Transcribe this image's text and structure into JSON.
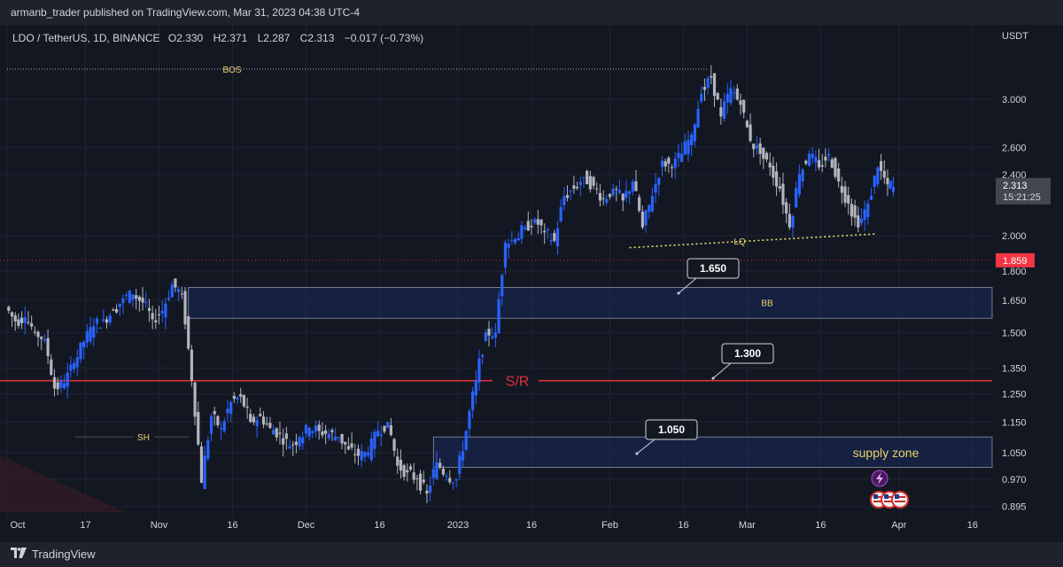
{
  "header": {
    "publisher_text": "armanb_trader published on TradingView.com, Mar 31, 2023 04:38 UTC-4"
  },
  "legend": {
    "symbol": "LDO / TetherUS, 1D, BINANCE",
    "open_label": "O",
    "open": "2.330",
    "high_label": "H",
    "high": "2.371",
    "low_label": "L",
    "low": "2.287",
    "close_label": "C",
    "close": "2.313",
    "change": "−0.017 (−0.73%)"
  },
  "footer": {
    "brand": "TradingView"
  },
  "colors": {
    "background": "#131722",
    "grid": "#1f2433",
    "up_candle": "#2962ff",
    "down_candle": "#b2b5be",
    "sr_line": "#e0323c",
    "annotation_text": "#e8d36a",
    "zone_fill": "#1a2a5c",
    "price_badge": "#f23645"
  },
  "chart_data": {
    "type": "candlestick",
    "symbol": "LDO / TetherUS",
    "interval": "1D",
    "exchange": "BINANCE",
    "y_scale": "log",
    "y_unit": "USDT",
    "ylim": [
      0.88,
      3.55
    ],
    "y_ticks": [
      "3.000",
      "2.600",
      "2.400",
      "2.000",
      "1.800",
      "1.650",
      "1.500",
      "1.350",
      "1.250",
      "1.150",
      "1.050",
      "0.970",
      "0.895"
    ],
    "x_ticks": [
      {
        "date": "2022-10-01",
        "label": "Oct"
      },
      {
        "date": "2022-10-17",
        "label": "17"
      },
      {
        "date": "2022-11-01",
        "label": "Nov"
      },
      {
        "date": "2022-11-16",
        "label": "16"
      },
      {
        "date": "2022-12-01",
        "label": "Dec"
      },
      {
        "date": "2022-12-16",
        "label": "16"
      },
      {
        "date": "2023-01-01",
        "label": "2023"
      },
      {
        "date": "2023-01-16",
        "label": "16"
      },
      {
        "date": "2023-02-01",
        "label": "Feb"
      },
      {
        "date": "2023-02-16",
        "label": "16"
      },
      {
        "date": "2023-03-01",
        "label": "Mar"
      },
      {
        "date": "2023-03-16",
        "label": "16"
      },
      {
        "date": "2023-04-01",
        "label": "Apr"
      },
      {
        "date": "2023-04-16",
        "label": "16"
      }
    ],
    "xlim": [
      "2022-10-01",
      "2023-04-20"
    ],
    "close_series": [
      [
        "2022-10-01",
        1.62
      ],
      [
        "2022-10-03",
        1.55
      ],
      [
        "2022-10-05",
        1.57
      ],
      [
        "2022-10-07",
        1.5
      ],
      [
        "2022-10-09",
        1.47
      ],
      [
        "2022-10-11",
        1.27
      ],
      [
        "2022-10-13",
        1.29
      ],
      [
        "2022-10-15",
        1.37
      ],
      [
        "2022-10-17",
        1.46
      ],
      [
        "2022-10-19",
        1.53
      ],
      [
        "2022-10-21",
        1.56
      ],
      [
        "2022-10-23",
        1.6
      ],
      [
        "2022-10-25",
        1.66
      ],
      [
        "2022-10-27",
        1.68
      ],
      [
        "2022-10-29",
        1.64
      ],
      [
        "2022-10-31",
        1.56
      ],
      [
        "2022-11-02",
        1.6
      ],
      [
        "2022-11-04",
        1.73
      ],
      [
        "2022-11-06",
        1.68
      ],
      [
        "2022-11-08",
        1.3
      ],
      [
        "2022-11-10",
        0.96
      ],
      [
        "2022-11-12",
        1.17
      ],
      [
        "2022-11-14",
        1.13
      ],
      [
        "2022-11-16",
        1.22
      ],
      [
        "2022-11-18",
        1.24
      ],
      [
        "2022-11-20",
        1.15
      ],
      [
        "2022-11-22",
        1.17
      ],
      [
        "2022-11-24",
        1.13
      ],
      [
        "2022-11-26",
        1.11
      ],
      [
        "2022-11-28",
        1.07
      ],
      [
        "2022-11-30",
        1.1
      ],
      [
        "2022-12-02",
        1.13
      ],
      [
        "2022-12-04",
        1.12
      ],
      [
        "2022-12-06",
        1.11
      ],
      [
        "2022-12-08",
        1.1
      ],
      [
        "2022-12-10",
        1.06
      ],
      [
        "2022-12-12",
        1.04
      ],
      [
        "2022-12-14",
        1.05
      ],
      [
        "2022-12-16",
        1.12
      ],
      [
        "2022-12-18",
        1.15
      ],
      [
        "2022-12-20",
        1.01
      ],
      [
        "2022-12-22",
        0.99
      ],
      [
        "2022-12-24",
        0.97
      ],
      [
        "2022-12-26",
        0.93
      ],
      [
        "2022-12-28",
        1.02
      ],
      [
        "2022-12-30",
        0.98
      ],
      [
        "2023-01-01",
        0.97
      ],
      [
        "2023-01-03",
        1.12
      ],
      [
        "2023-01-05",
        1.3
      ],
      [
        "2023-01-07",
        1.5
      ],
      [
        "2023-01-09",
        1.5
      ],
      [
        "2023-01-11",
        1.96
      ],
      [
        "2023-01-13",
        1.98
      ],
      [
        "2023-01-15",
        2.05
      ],
      [
        "2023-01-17",
        2.1
      ],
      [
        "2023-01-19",
        2.02
      ],
      [
        "2023-01-21",
        1.97
      ],
      [
        "2023-01-23",
        2.25
      ],
      [
        "2023-01-25",
        2.3
      ],
      [
        "2023-01-27",
        2.38
      ],
      [
        "2023-01-29",
        2.32
      ],
      [
        "2023-01-31",
        2.23
      ],
      [
        "2023-02-02",
        2.3
      ],
      [
        "2023-02-04",
        2.22
      ],
      [
        "2023-02-06",
        2.35
      ],
      [
        "2023-02-08",
        2.05
      ],
      [
        "2023-02-10",
        2.25
      ],
      [
        "2023-02-12",
        2.5
      ],
      [
        "2023-02-14",
        2.45
      ],
      [
        "2023-02-16",
        2.55
      ],
      [
        "2023-02-18",
        2.7
      ],
      [
        "2023-02-20",
        3.05
      ],
      [
        "2023-02-22",
        3.2
      ],
      [
        "2023-02-24",
        2.85
      ],
      [
        "2023-02-26",
        3.1
      ],
      [
        "2023-02-28",
        2.95
      ],
      [
        "2023-03-02",
        2.65
      ],
      [
        "2023-03-04",
        2.55
      ],
      [
        "2023-03-06",
        2.45
      ],
      [
        "2023-03-08",
        2.3
      ],
      [
        "2023-03-10",
        2.05
      ],
      [
        "2023-03-12",
        2.4
      ],
      [
        "2023-03-14",
        2.55
      ],
      [
        "2023-03-16",
        2.45
      ],
      [
        "2023-03-18",
        2.55
      ],
      [
        "2023-03-20",
        2.35
      ],
      [
        "2023-03-22",
        2.2
      ],
      [
        "2023-03-24",
        2.05
      ],
      [
        "2023-03-26",
        2.2
      ],
      [
        "2023-03-28",
        2.45
      ],
      [
        "2023-03-30",
        2.33
      ],
      [
        "2023-03-31",
        2.313
      ]
    ],
    "horizontal_levels": [
      {
        "price": 1.859,
        "label": "1.859"
      },
      {
        "price": 1.3,
        "label": "S/R"
      }
    ],
    "zones": [
      {
        "from": "2022-11-07",
        "to": "2023-04-20",
        "low": 1.565,
        "high": 1.715,
        "label": "BB"
      },
      {
        "from": "2022-12-27",
        "to": "2023-04-20",
        "low": 1.005,
        "high": 1.1,
        "label": "supply zone"
      }
    ],
    "dotted_lines": [
      {
        "from": "2022-10-01",
        "to": "2023-02-21",
        "price": 3.28,
        "label": "BOS"
      },
      {
        "from": "2022-10-15",
        "to": "2022-11-07",
        "price": 1.1,
        "label": "SH"
      },
      {
        "from": "2023-02-05",
        "to": "2023-03-27",
        "price_from": 1.93,
        "price_to": 2.01,
        "label": "LQ"
      }
    ],
    "callouts": [
      "1.650",
      "1.300",
      "1.050"
    ],
    "last_price": {
      "price": "2.313",
      "countdown": "15:21:25"
    },
    "marker_price": "1.859"
  }
}
